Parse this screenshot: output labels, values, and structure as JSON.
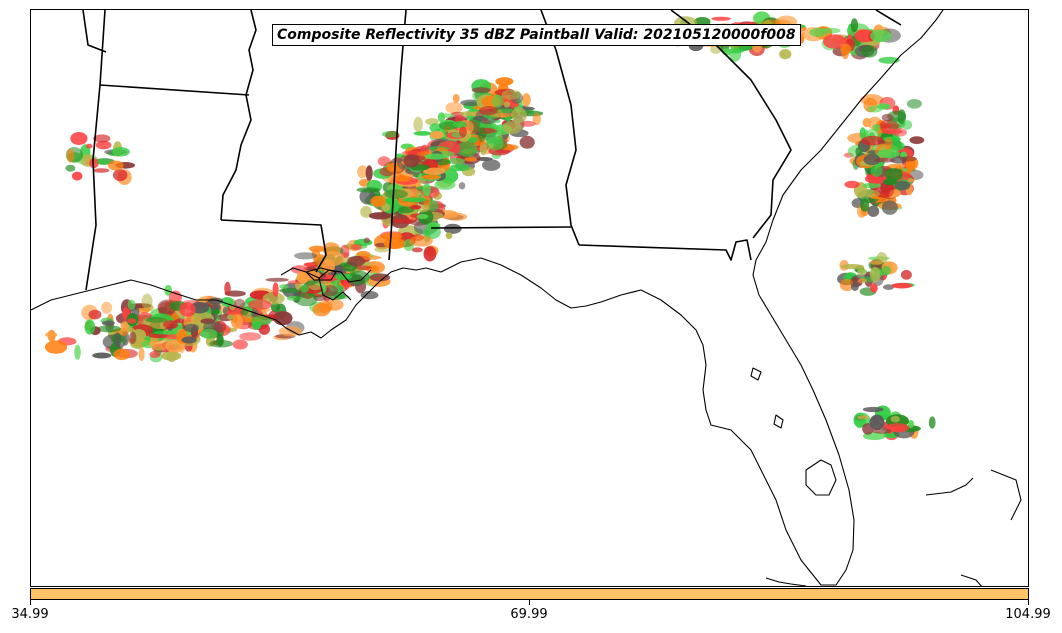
{
  "title": "Composite Reflectivity 35 dBZ Paintball Valid: 202105120000f008",
  "colorbar": {
    "fill_color": "#ffc266",
    "ticks": [
      "34.99",
      "69.99",
      "104.99"
    ]
  },
  "colors": {
    "member_palette": [
      "#ff7f0e",
      "#d62728",
      "#ff4040",
      "#2ecc40",
      "#4fd64f",
      "#8c3a3a",
      "#b5b54a",
      "#ff9f40",
      "#5a5a5a",
      "#228b22"
    ]
  },
  "map": {
    "region": "Southeastern United States",
    "features": [
      "state-borders",
      "coastline",
      "lakes"
    ]
  }
}
